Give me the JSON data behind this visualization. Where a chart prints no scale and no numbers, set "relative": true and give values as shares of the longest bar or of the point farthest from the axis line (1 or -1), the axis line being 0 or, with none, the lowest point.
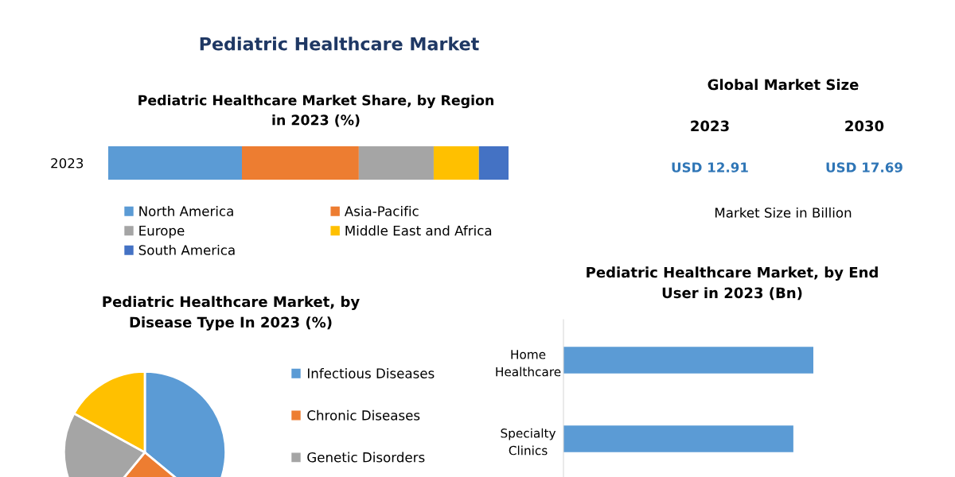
{
  "chart_data": [
    {
      "type": "bar",
      "orientation": "horizontal",
      "stacked": true,
      "relative": true,
      "title": "Pediatric Healthcare Market Share, by Region in 2023 (%)",
      "annotations": [
        "Pediatric Healthcare Market"
      ],
      "categories": [
        "2023"
      ],
      "legend": "bottom",
      "series": [
        {
          "name": "North America",
          "color": "#5b9bd5",
          "values": [
            0.334
          ]
        },
        {
          "name": "Asia-Pacific",
          "color": "#ed7d31",
          "values": [
            0.292
          ]
        },
        {
          "name": "Europe",
          "color": "#a5a5a5",
          "values": [
            0.187
          ]
        },
        {
          "name": "Middle East and Africa",
          "color": "#ffc000",
          "values": [
            0.113
          ]
        },
        {
          "name": "South America",
          "color": "#4472c4",
          "values": [
            0.074
          ]
        }
      ]
    },
    {
      "type": "pie",
      "title": "Pediatric Healthcare Market, by Disease Type In 2023 (%)",
      "legend": "right",
      "categories": [
        "Infectious Diseases",
        "Chronic Diseases",
        "Genetic Disorders",
        null
      ],
      "values": [
        36,
        25,
        22,
        17
      ],
      "colors": [
        "#5b9bd5",
        "#ed7d31",
        "#a5a5a5",
        "#ffc000"
      ]
    },
    {
      "type": "bar",
      "orientation": "horizontal",
      "relative": true,
      "title": "Pediatric Healthcare Market, by End User in 2023 (Bn)",
      "categories": [
        "Home Healthcare",
        "Specialty Clinics"
      ],
      "values": [
        1,
        0.92
      ],
      "color": "#5b9bd5"
    },
    {
      "type": "other",
      "title": "Global Market Size",
      "categories": [
        "2023",
        "2030"
      ],
      "value_labels": [
        "USD 12.91",
        "USD 17.69"
      ],
      "annotations": [
        "Market Size in Billion"
      ]
    }
  ]
}
